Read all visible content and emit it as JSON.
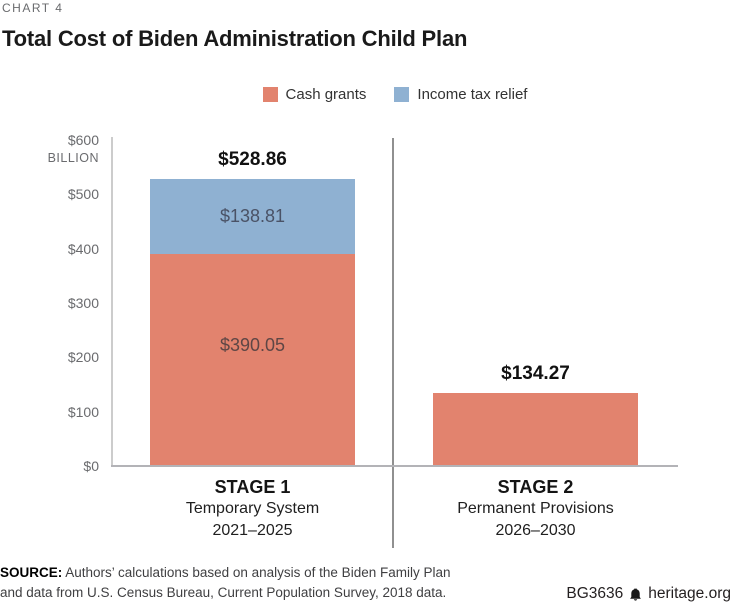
{
  "chart_label": "CHART 4",
  "title": "Total Cost of Biden Administration Child Plan",
  "legend": [
    {
      "label": "Cash grants",
      "color": "#e2836e"
    },
    {
      "label": "Income tax relief",
      "color": "#8fb1d2"
    }
  ],
  "chart_data": {
    "type": "bar",
    "stacked": true,
    "title": "Total Cost of Biden Administration Child Plan",
    "unit": "billions of dollars",
    "categories": [
      "STAGE 1",
      "STAGE 2"
    ],
    "category_sublabels": [
      [
        "Temporary System",
        "2021–2025"
      ],
      [
        "Permanent Provisions",
        "2026–2030"
      ]
    ],
    "series": [
      {
        "name": "Cash grants",
        "color": "#e2836e",
        "values": [
          390.05,
          134.27
        ]
      },
      {
        "name": "Income tax relief",
        "color": "#8fb1d2",
        "values": [
          138.81,
          0
        ]
      }
    ],
    "totals": [
      528.86,
      134.27
    ],
    "total_labels": [
      "$528.86",
      "$134.27"
    ],
    "segment_labels": [
      [
        "$390.05",
        "$138.81"
      ],
      []
    ],
    "ylim": [
      0,
      600
    ],
    "yticks": [
      "$600",
      "$500",
      "$400",
      "$300",
      "$200",
      "$100",
      "$0"
    ],
    "ytick_unit": "BILLION",
    "legend_position": "top",
    "grid": false
  },
  "source": {
    "prefix": "SOURCE:",
    "line1": " Authors’ calculations based on analysis of the Biden Family Plan",
    "line2": "and data from U.S. Census Bureau, Current Population Survey, 2018 data."
  },
  "footer": {
    "doc_id": "BG3636",
    "site": "heritage.org"
  }
}
